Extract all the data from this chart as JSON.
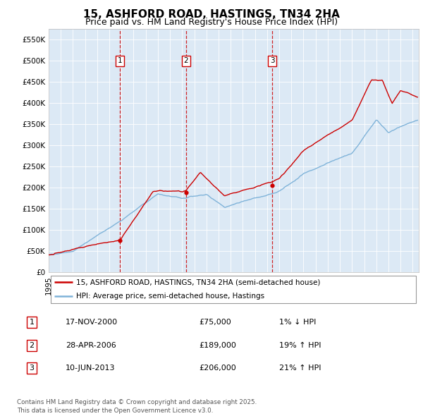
{
  "title": "15, ASHFORD ROAD, HASTINGS, TN34 2HA",
  "subtitle": "Price paid vs. HM Land Registry's House Price Index (HPI)",
  "ylim": [
    0,
    575000
  ],
  "yticks": [
    0,
    50000,
    100000,
    150000,
    200000,
    250000,
    300000,
    350000,
    400000,
    450000,
    500000,
    550000
  ],
  "ytick_labels": [
    "£0",
    "£50K",
    "£100K",
    "£150K",
    "£200K",
    "£250K",
    "£300K",
    "£350K",
    "£400K",
    "£450K",
    "£500K",
    "£550K"
  ],
  "background_color": "#dce9f5",
  "legend_line1": "15, ASHFORD ROAD, HASTINGS, TN34 2HA (semi-detached house)",
  "legend_line2": "HPI: Average price, semi-detached house, Hastings",
  "sale_color": "#cc0000",
  "hpi_color": "#7fb3d9",
  "sale_points": [
    {
      "date": 2000.88,
      "price": 75000,
      "label": "1"
    },
    {
      "date": 2006.33,
      "price": 189000,
      "label": "2"
    },
    {
      "date": 2013.44,
      "price": 206000,
      "label": "3"
    }
  ],
  "vline_dates": [
    2000.88,
    2006.33,
    2013.44
  ],
  "table": [
    {
      "num": "1",
      "date": "17-NOV-2000",
      "price": "£75,000",
      "pct": "1% ↓ HPI"
    },
    {
      "num": "2",
      "date": "28-APR-2006",
      "price": "£189,000",
      "pct": "19% ↑ HPI"
    },
    {
      "num": "3",
      "date": "10-JUN-2013",
      "price": "£206,000",
      "pct": "21% ↑ HPI"
    }
  ],
  "footnote": "Contains HM Land Registry data © Crown copyright and database right 2025.\nThis data is licensed under the Open Government Licence v3.0.",
  "title_fontsize": 11,
  "subtitle_fontsize": 9,
  "tick_fontsize": 7.5
}
